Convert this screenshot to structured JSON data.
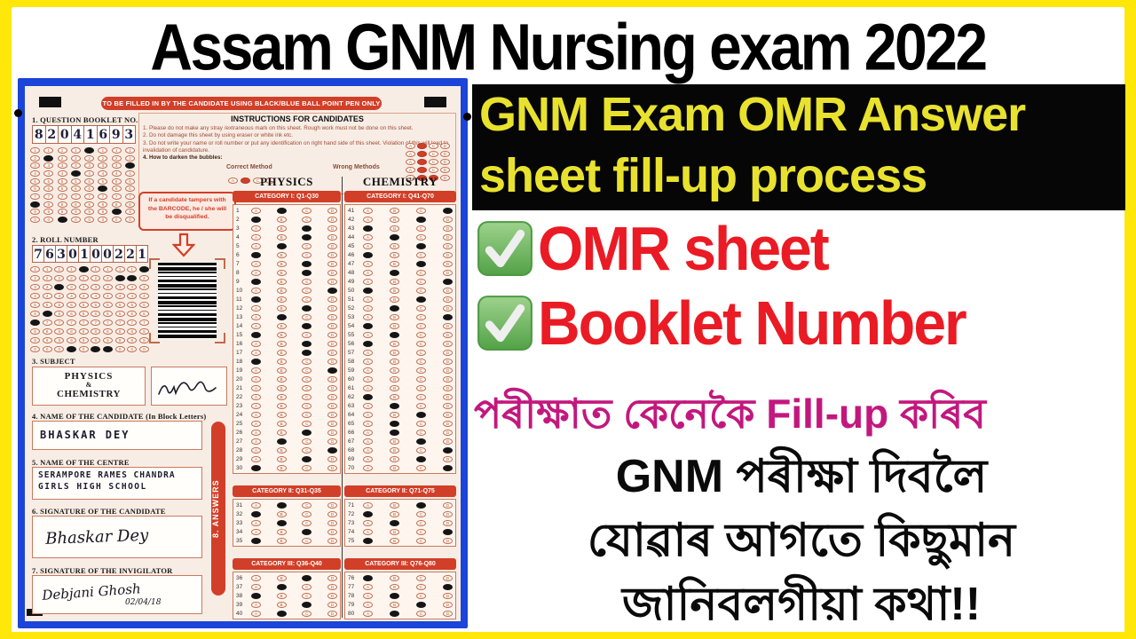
{
  "title": "Assam GNM Nursing exam 2022",
  "right": {
    "black_box_line1": "GNM Exam OMR Answer",
    "black_box_line2": "sheet fill-up process",
    "check_items": [
      "OMR sheet",
      "Booklet Number"
    ],
    "magenta_line": "পৰীক্ষাত কেনেকৈ Fill-up কৰিব",
    "black_lines": [
      "GNM পৰীক্ষা দিবলৈ",
      "যোৱাৰ আগতে কিছুমান",
      "জানিবলগীয়া কথা!!"
    ]
  },
  "omr": {
    "top_banner": "TO BE FILLED IN BY THE CANDIDATE USING BLACK/BLUE BALL POINT PEN ONLY",
    "booklet": {
      "label": "1. QUESTION BOOKLET NO.",
      "number": "82041693"
    },
    "roll": {
      "label": "2. ROLL NUMBER",
      "number": "7630100221"
    },
    "instructions": {
      "title": "INSTRUCTIONS FOR CANDIDATES",
      "items": [
        "1.  Please do not make any stray /extraneous mark on this sheet. Rough work must not be done on this sheet.",
        "2.  Do not damage this sheet by using eraser or white ink etc.",
        "3.  Do not write your name or roll number or put any identification on right hand side of this sheet. Violation of this will lead to invalidation of candidature.",
        "4.  How to darken the bubbles:"
      ],
      "correct_label": "Correct Method",
      "wrong_label": "Wrong Methods",
      "correct_filled": "B",
      "wrong_examples": [
        [
          "B"
        ],
        [
          "B"
        ],
        [
          "B"
        ],
        [
          "B"
        ],
        [
          "B",
          "C"
        ]
      ]
    },
    "warning": "If a candidate tampers with the BARCODE, he / she will be disqualified.",
    "subject": {
      "label": "3. SUBJECT",
      "lines": [
        "PHYSICS",
        "&",
        "CHEMISTRY"
      ]
    },
    "candidate": {
      "label": "4. NAME OF THE CANDIDATE (In Block Letters)",
      "value": "BHASKAR DEY"
    },
    "centre": {
      "label": "5. NAME OF THE CENTRE",
      "lines": [
        "SERAMPORE RAMES CHANDRA",
        "GIRLS HIGH SCHOOL"
      ]
    },
    "sig_candidate": {
      "label": "6. SIGNATURE OF THE CANDIDATE",
      "value": "Bhaskar Dey"
    },
    "sig_invigilator": {
      "label": "7. SIGNATURE OF THE INVIGILATOR",
      "value": "Debjani Ghosh",
      "date": "02/04/18"
    },
    "answers_bar": "8. ANSWERS",
    "columns": [
      {
        "subject": "PHYSICS",
        "sections": [
          {
            "banner": "CATEGORY I: Q1-Q30",
            "start": 1,
            "answers": [
              "B",
              "A",
              "C",
              "C",
              "B",
              "A",
              "C",
              "C",
              "A",
              "D",
              "A",
              "C",
              "B",
              "C",
              "A",
              "C",
              "C",
              "A",
              "D",
              null,
              null,
              null,
              null,
              null,
              null,
              "C",
              "B",
              "D",
              "C",
              "A"
            ]
          },
          {
            "banner": "CATEGORY II: Q31-Q35",
            "start": 31,
            "answers": [
              "B",
              "A",
              "B",
              "C",
              "A"
            ]
          },
          {
            "banner": "CATEGORY III: Q36-Q40",
            "start": 36,
            "answers": [
              "C",
              "B",
              "A",
              "C",
              "B"
            ]
          }
        ]
      },
      {
        "subject": "CHEMISTRY",
        "sections": [
          {
            "banner": "CATEGORY I: Q41-Q70",
            "start": 41,
            "answers": [
              "D",
              "C",
              "A",
              "B",
              "C",
              "A",
              "C",
              "B",
              "D",
              "A",
              "C",
              "B",
              "D",
              "A",
              "B",
              "A",
              null,
              null,
              null,
              null,
              null,
              "A",
              "B",
              "C",
              "B",
              "B",
              "C",
              "D",
              "C",
              "D"
            ]
          },
          {
            "banner": "CATEGORY II: Q71-Q75",
            "start": 71,
            "answers": [
              "C",
              "A",
              "B",
              "D",
              "A"
            ]
          },
          {
            "banner": "CATEGORY III: Q76-Q80",
            "start": 76,
            "answers": [
              "A",
              "D",
              "B",
              "C",
              "B"
            ]
          }
        ]
      }
    ]
  },
  "colors": {
    "yellow_border": "#ffe70a",
    "black_box": "#060606",
    "box_text_yellow": "#e8e22e",
    "red_text": "#ea1b24",
    "magenta_text": "#c2187e",
    "omr_frame_blue": "#1b45d8",
    "omr_red": "#d23f28",
    "check_green": "#57a84b"
  }
}
